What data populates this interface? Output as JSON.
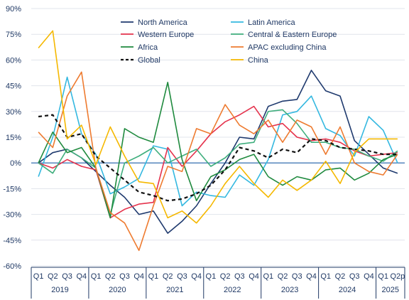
{
  "chart_data": {
    "type": "line",
    "ylim": [
      -60,
      90
    ],
    "yticks": [
      -60,
      -45,
      -30,
      -15,
      0,
      15,
      30,
      45,
      60,
      75,
      90
    ],
    "ytick_labels": [
      "-60%",
      "-45%",
      "-30%",
      "-15%",
      "0%",
      "15%",
      "30%",
      "45%",
      "60%",
      "75%",
      "90%"
    ],
    "categories": [
      "Q1",
      "Q2",
      "Q3",
      "Q4",
      "Q1",
      "Q2",
      "Q3",
      "Q4",
      "Q1",
      "Q2",
      "Q3",
      "Q4",
      "Q1",
      "Q2",
      "Q3",
      "Q4",
      "Q1",
      "Q2",
      "Q3",
      "Q4",
      "Q1",
      "Q2",
      "Q3",
      "Q4",
      "Q1",
      "Q2p"
    ],
    "years": [
      {
        "label": "2019",
        "start": 0,
        "end": 3
      },
      {
        "label": "2020",
        "start": 4,
        "end": 7
      },
      {
        "label": "2021",
        "start": 8,
        "end": 11
      },
      {
        "label": "2022",
        "start": 12,
        "end": 15
      },
      {
        "label": "2023",
        "start": 16,
        "end": 19
      },
      {
        "label": "2024",
        "start": 20,
        "end": 23
      },
      {
        "label": "2025",
        "start": 24,
        "end": 25
      }
    ],
    "grid": "horizontal",
    "legend_placement": "top",
    "series": [
      {
        "name": "North America",
        "color": "#1f3a6e",
        "dash": false,
        "values": [
          0,
          6,
          8,
          3,
          -5,
          -13,
          -20,
          -30,
          -28,
          -41,
          -34,
          -25,
          -12,
          0,
          15,
          14,
          33,
          36,
          37,
          54,
          42,
          39,
          13,
          5,
          -3,
          -6
        ]
      },
      {
        "name": "Latin America",
        "color": "#34b8e0",
        "dash": false,
        "values": [
          -8,
          15,
          50,
          17,
          5,
          -18,
          -14,
          -9,
          10,
          8,
          -25,
          -17,
          -19,
          -20,
          -7,
          -13,
          2,
          28,
          30,
          39,
          20,
          16,
          4,
          27,
          19,
          0
        ]
      },
      {
        "name": "Western Europe",
        "color": "#e5334d",
        "dash": false,
        "values": [
          0,
          -3,
          2,
          -2,
          -4,
          -32,
          -27,
          -24,
          -23,
          9,
          -2,
          7,
          17,
          24,
          28,
          33,
          21,
          23,
          15,
          13,
          14,
          12,
          7,
          4,
          5,
          6
        ]
      },
      {
        "name": "Central & Eastern Europe",
        "color": "#3fae7d",
        "dash": false,
        "values": [
          0,
          -6,
          8,
          3,
          -3,
          -30,
          0,
          4,
          9,
          0,
          4,
          8,
          -2,
          3,
          11,
          12,
          30,
          31,
          23,
          12,
          12,
          9,
          8,
          4,
          1,
          7
        ]
      },
      {
        "name": "Africa",
        "color": "#1f8a3e",
        "dash": false,
        "values": [
          0,
          18,
          6,
          9,
          -3,
          -32,
          20,
          15,
          12,
          47,
          2,
          -22,
          -8,
          -4,
          2,
          5,
          -8,
          -13,
          -8,
          -10,
          -4,
          -3,
          -10,
          -6,
          2,
          5
        ]
      },
      {
        "name": "APAC excluding China",
        "color": "#ee7b30",
        "dash": false,
        "values": [
          18,
          9,
          39,
          53,
          -3,
          -29,
          -35,
          -51,
          -25,
          -2,
          -5,
          20,
          17,
          34,
          22,
          17,
          25,
          12,
          25,
          21,
          5,
          21,
          0,
          -5,
          -7,
          5
        ]
      },
      {
        "name": "Global",
        "color": "#111111",
        "dash": true,
        "values": [
          27,
          28,
          15,
          17,
          4,
          -3,
          -10,
          -17,
          -19,
          -22,
          -21,
          -18,
          -13,
          -4,
          9,
          7,
          3,
          8,
          6,
          14,
          13,
          9,
          8,
          7,
          5,
          5
        ]
      },
      {
        "name": "China",
        "color": "#f5b800",
        "dash": false,
        "values": [
          67,
          77,
          14,
          22,
          -1,
          21,
          4,
          -11,
          -12,
          -32,
          -28,
          -35,
          -25,
          -12,
          -2,
          -12,
          -20,
          -10,
          -16,
          -10,
          1,
          -12,
          6,
          14,
          14,
          14
        ]
      }
    ]
  }
}
